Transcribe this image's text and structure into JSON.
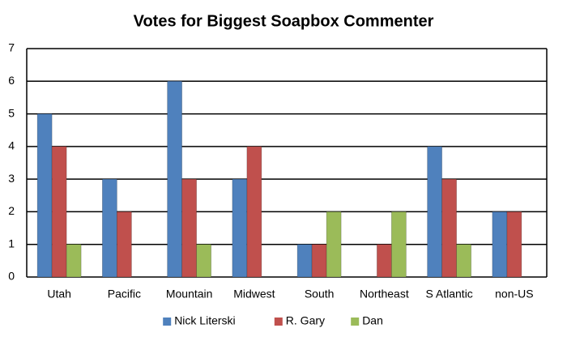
{
  "chart_data": {
    "type": "bar",
    "title": "Votes for Biggest Soapbox Commenter",
    "categories": [
      "Utah",
      "Pacific",
      "Mountain",
      "Midwest",
      "South",
      "Northeast",
      "S Atlantic",
      "non-US"
    ],
    "series": [
      {
        "name": "Nick Literski",
        "color": "#4f81bd",
        "values": [
          5,
          3,
          6,
          3,
          1,
          0,
          4,
          2
        ]
      },
      {
        "name": "R. Gary",
        "color": "#c0504d",
        "values": [
          4,
          2,
          3,
          4,
          1,
          1,
          3,
          2
        ]
      },
      {
        "name": "Dan",
        "color": "#9bbb59",
        "values": [
          1,
          0,
          1,
          0,
          2,
          2,
          1,
          0
        ]
      }
    ],
    "ylim": [
      0,
      7
    ],
    "yticks": [
      0,
      1,
      2,
      3,
      4,
      5,
      6,
      7
    ],
    "grid": true,
    "legend": "bottom"
  }
}
